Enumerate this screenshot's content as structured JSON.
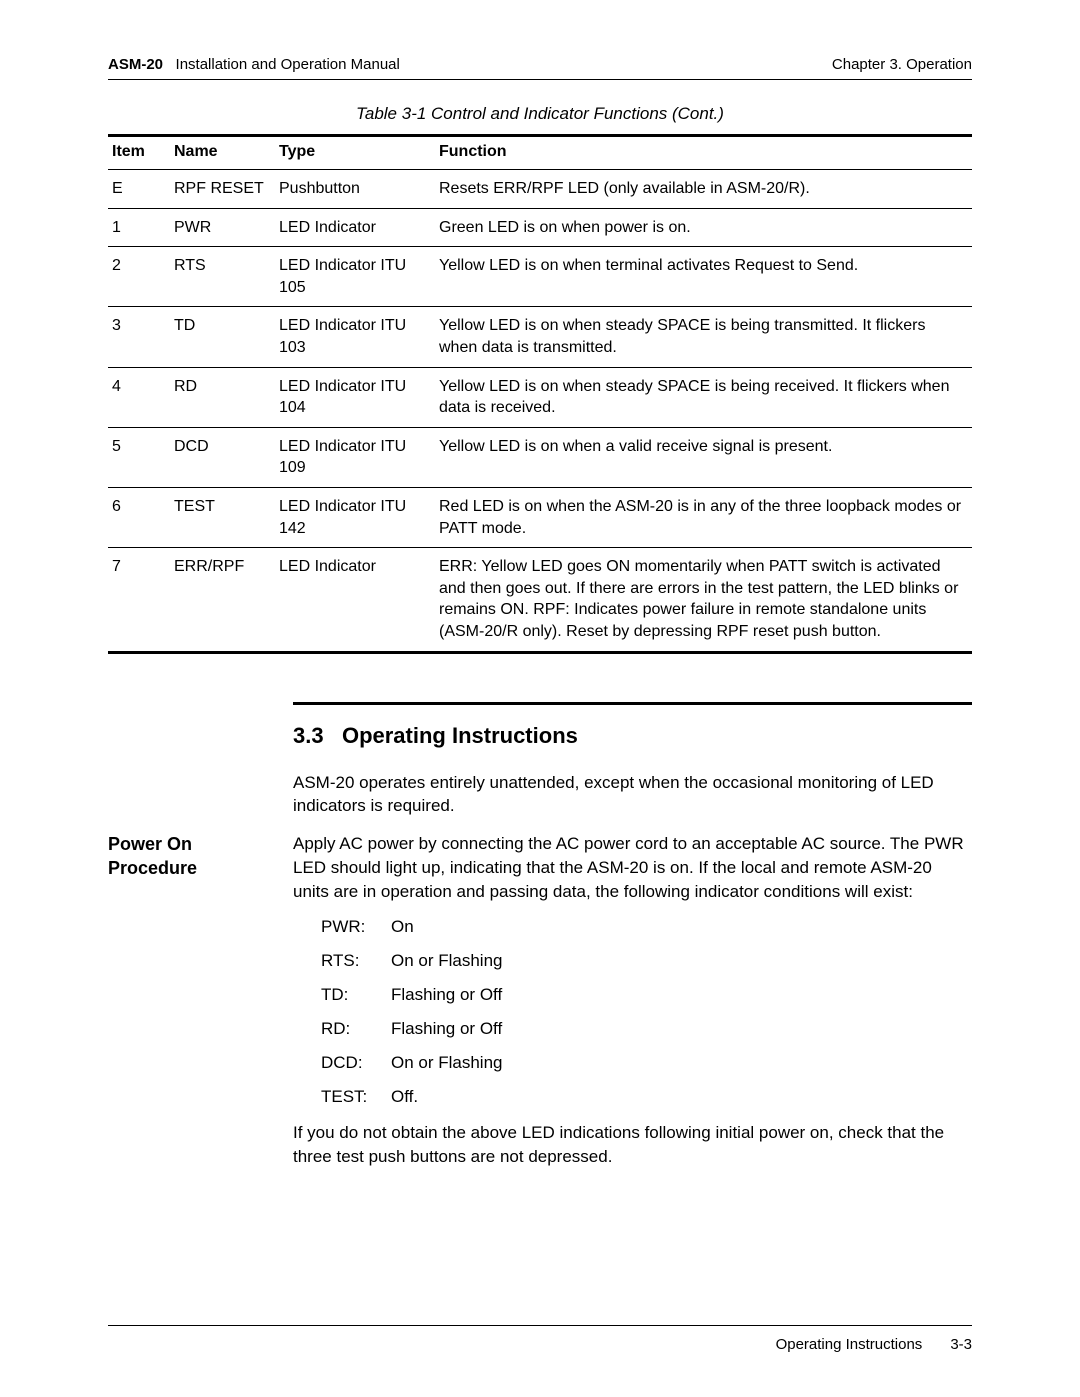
{
  "header": {
    "product": "ASM-20",
    "manual": "Installation and Operation Manual",
    "chapter": "Chapter 3.  Operation"
  },
  "table": {
    "caption": "Table 3-1  Control and Indicator Functions (Cont.)",
    "columns": [
      "Item",
      "Name",
      "Type",
      "Function"
    ],
    "rows": [
      [
        "E",
        "RPF RESET",
        "Pushbutton",
        "Resets ERR/RPF LED (only available in ASM-20/R)."
      ],
      [
        "1",
        "PWR",
        "LED Indicator",
        "Green LED is on when power is on."
      ],
      [
        "2",
        "RTS",
        "LED Indicator ITU 105",
        "Yellow LED is on when terminal activates Request to Send."
      ],
      [
        "3",
        "TD",
        "LED Indicator ITU 103",
        "Yellow LED is on when steady SPACE is being transmitted. It flickers when data is transmitted."
      ],
      [
        "4",
        "RD",
        "LED Indicator ITU 104",
        "Yellow LED is on when steady SPACE is being received. It flickers when data is received."
      ],
      [
        "5",
        "DCD",
        "LED Indicator ITU 109",
        "Yellow LED is on when a valid receive signal is present."
      ],
      [
        "6",
        "TEST",
        "LED Indicator ITU 142",
        "Red LED is on when the ASM-20 is in any of the three loopback modes or PATT mode."
      ],
      [
        "7",
        "ERR/RPF",
        "LED Indicator",
        "ERR: Yellow LED goes ON momentarily when PATT switch is activated and then goes out. If there are errors in the test pattern, the LED blinks or remains ON. RPF: Indicates power failure in remote standalone units (ASM-20/R only). Reset by depressing RPF reset push button."
      ]
    ]
  },
  "section": {
    "number": "3.3",
    "title": "Operating Instructions",
    "intro": "ASM-20 operates entirely unattended, except when the occasional monitoring of LED indicators is required.",
    "side_heading": "Power On Procedure",
    "power_on_intro": "Apply AC power by connecting the AC power cord to an acceptable AC source. The PWR LED should light up, indicating that the ASM-20 is on. If the local and remote ASM-20 units are in operation and passing data, the following indicator conditions will exist:",
    "indicators": [
      {
        "label": "PWR:",
        "value": "On"
      },
      {
        "label": "RTS:",
        "value": "On or Flashing"
      },
      {
        "label": "TD:",
        "value": "Flashing or Off"
      },
      {
        "label": "RD:",
        "value": "Flashing or Off"
      },
      {
        "label": "DCD:",
        "value": "On or Flashing"
      },
      {
        "label": "TEST:",
        "value": "Off."
      }
    ],
    "closing": "If you do not obtain the above LED indications following initial power on, check that the three test push buttons are not depressed."
  },
  "footer": {
    "section": "Operating Instructions",
    "page": "3-3"
  }
}
